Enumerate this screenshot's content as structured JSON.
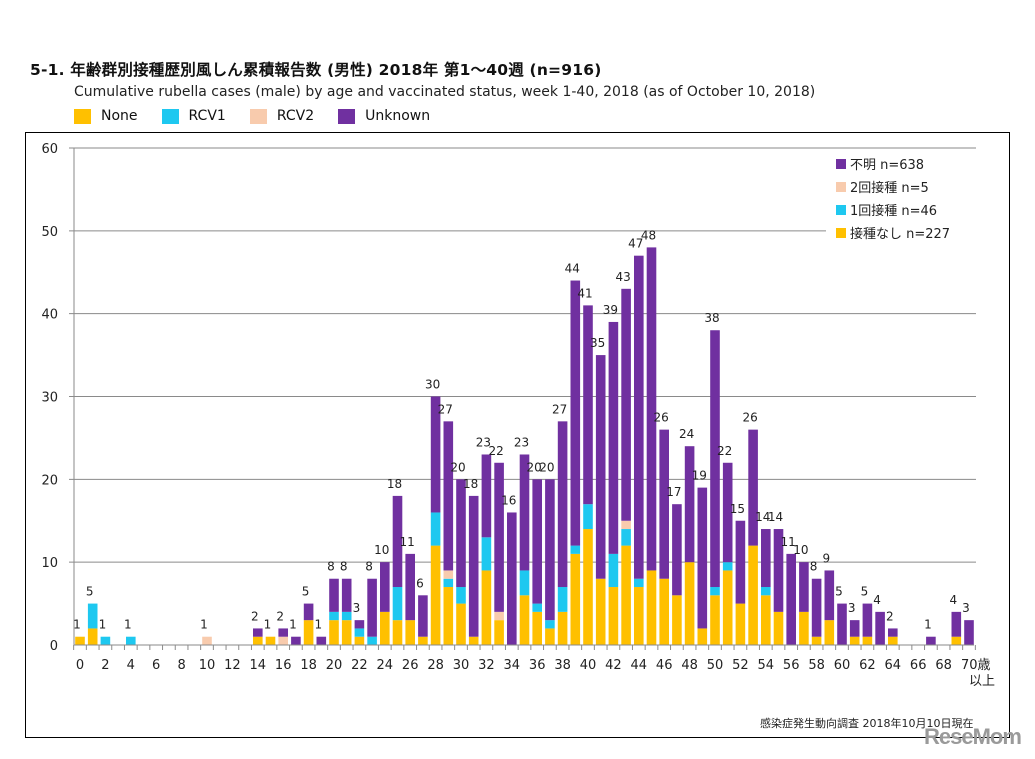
{
  "header": {
    "title": "5-1. 年齢群別接種歴別風しん累積報告数 (男性)  2018年 第1～40週 (n=916)",
    "subtitle": "Cumulative rubella cases (male) by age and vaccinated status, week 1-40, 2018 (as of October 10, 2018)"
  },
  "top_legend": [
    {
      "label": "None",
      "color": "#FFC000"
    },
    {
      "label": "RCV1",
      "color": "#1EC8F0"
    },
    {
      "label": "RCV2",
      "color": "#F8CBAD"
    },
    {
      "label": "Unknown",
      "color": "#7030A0"
    }
  ],
  "footer": {
    "source": "感染症発生動向調査 2018年10月10日現在",
    "watermark": "ReseMom"
  },
  "chart_data": {
    "type": "bar",
    "stacked": true,
    "title": "5-1. 年齢群別接種歴別風しん累積報告数 (男性)  2018年 第1～40週 (n=916)",
    "xlabel": "",
    "ylabel": "",
    "ylim": [
      0,
      60
    ],
    "yticks": [
      0,
      10,
      20,
      30,
      40,
      50,
      60
    ],
    "grid": true,
    "legend_position": "top-right",
    "x_tick_labels": [
      "0",
      "2",
      "4",
      "6",
      "8",
      "10",
      "12",
      "14",
      "16",
      "18",
      "20",
      "22",
      "24",
      "26",
      "28",
      "30",
      "32",
      "34",
      "36",
      "38",
      "40",
      "42",
      "44",
      "46",
      "48",
      "50",
      "52",
      "54",
      "56",
      "58",
      "60",
      "62",
      "64",
      "66",
      "68",
      "70歳"
    ],
    "x_last_label_suffix": "以上",
    "categories": [
      "0",
      "1",
      "2",
      "3",
      "4",
      "5",
      "6",
      "7",
      "8",
      "9",
      "10",
      "11",
      "12",
      "13",
      "14",
      "15",
      "16",
      "17",
      "18",
      "19",
      "20",
      "21",
      "22",
      "23",
      "24",
      "25",
      "26",
      "27",
      "28",
      "29",
      "30",
      "31",
      "32",
      "33",
      "34",
      "35",
      "36",
      "37",
      "38",
      "39",
      "40",
      "41",
      "42",
      "43",
      "44",
      "45",
      "46",
      "47",
      "48",
      "49",
      "50",
      "51",
      "52",
      "53",
      "54",
      "55",
      "56",
      "57",
      "58",
      "59",
      "60",
      "61",
      "62",
      "63",
      "64",
      "65",
      "66",
      "67",
      "68",
      "69",
      "70+"
    ],
    "inner_legend": [
      {
        "label": "不明 n=638",
        "color": "#7030A0"
      },
      {
        "label": "2回接種 n=5",
        "color": "#F8CBAD"
      },
      {
        "label": "1回接種 n=46",
        "color": "#1EC8F0"
      },
      {
        "label": "接種なし n=227",
        "color": "#FFC000"
      }
    ],
    "series": [
      {
        "name": "None",
        "color": "#FFC000",
        "values": [
          1,
          2,
          0,
          0,
          0,
          0,
          0,
          0,
          0,
          0,
          0,
          0,
          0,
          0,
          1,
          1,
          0,
          0,
          3,
          0,
          3,
          3,
          1,
          0,
          4,
          3,
          3,
          1,
          12,
          7,
          5,
          1,
          9,
          3,
          0,
          6,
          4,
          2,
          4,
          11,
          14,
          8,
          7,
          12,
          7,
          9,
          8,
          6,
          10,
          2,
          6,
          9,
          5,
          12,
          6,
          4,
          0,
          4,
          1,
          3,
          0,
          1,
          1,
          0,
          1,
          0,
          0,
          0,
          0,
          1,
          0
        ]
      },
      {
        "name": "RCV1",
        "color": "#1EC8F0",
        "values": [
          0,
          3,
          1,
          0,
          1,
          0,
          0,
          0,
          0,
          0,
          0,
          0,
          0,
          0,
          0,
          0,
          0,
          0,
          0,
          0,
          1,
          1,
          1,
          1,
          0,
          4,
          0,
          0,
          4,
          1,
          2,
          0,
          4,
          0,
          0,
          3,
          1,
          1,
          3,
          1,
          3,
          0,
          4,
          2,
          1,
          0,
          0,
          0,
          0,
          0,
          1,
          1,
          0,
          0,
          1,
          0,
          0,
          0,
          0,
          0,
          0,
          0,
          0,
          0,
          0,
          0,
          0,
          0,
          0,
          0,
          0
        ]
      },
      {
        "name": "RCV2",
        "color": "#F8CBAD",
        "values": [
          0,
          0,
          0,
          0,
          0,
          0,
          0,
          0,
          0,
          0,
          1,
          0,
          0,
          0,
          0,
          0,
          1,
          0,
          0,
          0,
          0,
          0,
          0,
          0,
          0,
          0,
          0,
          0,
          0,
          1,
          0,
          0,
          0,
          1,
          0,
          0,
          0,
          0,
          0,
          0,
          0,
          0,
          0,
          1,
          0,
          0,
          0,
          0,
          0,
          0,
          0,
          0,
          0,
          0,
          0,
          0,
          0,
          0,
          0,
          0,
          0,
          0,
          0,
          0,
          0,
          0,
          0,
          0,
          0,
          0,
          0
        ]
      },
      {
        "name": "Unknown",
        "color": "#7030A0",
        "values": [
          0,
          0,
          0,
          0,
          0,
          0,
          0,
          0,
          0,
          0,
          0,
          0,
          0,
          0,
          1,
          0,
          1,
          1,
          2,
          1,
          4,
          4,
          1,
          7,
          6,
          11,
          8,
          5,
          14,
          18,
          13,
          17,
          10,
          18,
          16,
          14,
          15,
          17,
          20,
          32,
          24,
          27,
          28,
          28,
          39,
          39,
          18,
          11,
          14,
          17,
          31,
          12,
          10,
          14,
          7,
          10,
          11,
          6,
          7,
          6,
          5,
          2,
          4,
          4,
          1,
          0,
          0,
          1,
          0,
          3,
          3
        ]
      }
    ],
    "totals": [
      1,
      5,
      1,
      0,
      1,
      0,
      0,
      0,
      0,
      0,
      1,
      0,
      0,
      0,
      2,
      1,
      2,
      1,
      5,
      1,
      8,
      8,
      3,
      8,
      10,
      18,
      11,
      6,
      30,
      27,
      20,
      18,
      23,
      22,
      16,
      23,
      20,
      20,
      27,
      44,
      41,
      35,
      39,
      43,
      47,
      48,
      26,
      17,
      24,
      19,
      38,
      22,
      15,
      26,
      14,
      14,
      11,
      10,
      8,
      9,
      5,
      3,
      5,
      4,
      2,
      0,
      0,
      1,
      0,
      4,
      3
    ]
  }
}
